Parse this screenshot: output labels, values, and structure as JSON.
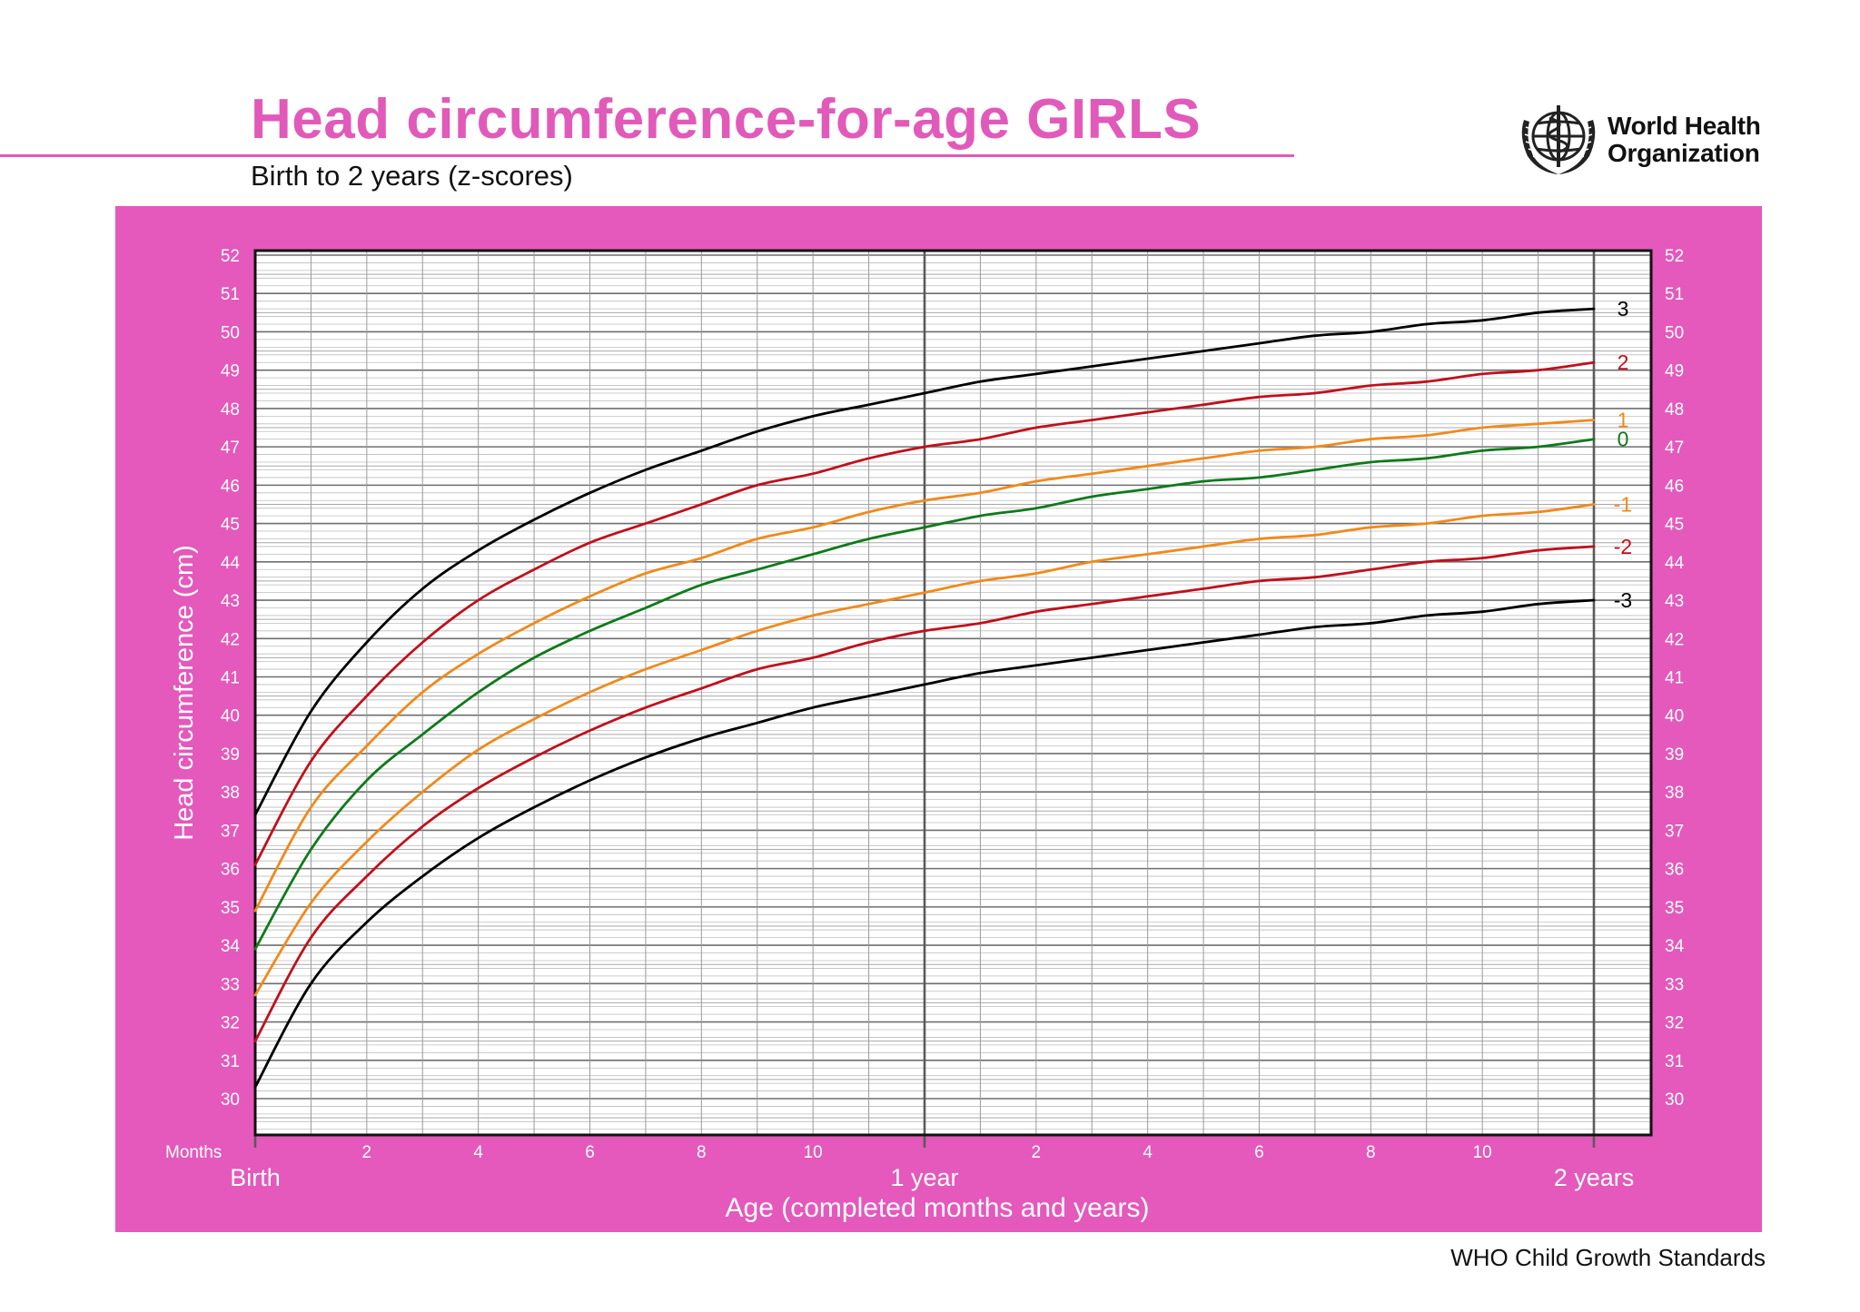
{
  "header": {
    "title": "Head circumference-for-age  GIRLS",
    "subtitle": "Birth to 2 years (z-scores)",
    "org_line1": "World Health",
    "org_line2": "Organization",
    "logo_icon": "who-emblem-icon"
  },
  "footer": {
    "text": "WHO Child Growth Standards"
  },
  "colors": {
    "brand_pink": "#e15ab9",
    "panel_pink": "#e459bb",
    "z3": "#000000",
    "z2": "#c0101c",
    "z1": "#f08a1a",
    "z0": "#0e7a1a"
  },
  "chart_data": {
    "type": "line",
    "title": "Head circumference-for-age  GIRLS",
    "subtitle": "Birth to 2 years (z-scores)",
    "xlabel": "Age (completed months and years)",
    "ylabel": "Head circumference (cm)",
    "x_unit_label": "Months",
    "xlim": [
      0,
      24
    ],
    "ylim": [
      29,
      52
    ],
    "y_ticks": [
      30,
      31,
      32,
      33,
      34,
      35,
      36,
      37,
      38,
      39,
      40,
      41,
      42,
      43,
      44,
      45,
      46,
      47,
      48,
      49,
      50,
      51,
      52
    ],
    "x_ticks": [
      {
        "month": 2,
        "label": "2"
      },
      {
        "month": 4,
        "label": "4"
      },
      {
        "month": 6,
        "label": "6"
      },
      {
        "month": 8,
        "label": "8"
      },
      {
        "month": 10,
        "label": "10"
      },
      {
        "month": 14,
        "label": "2"
      },
      {
        "month": 16,
        "label": "4"
      },
      {
        "month": 18,
        "label": "6"
      },
      {
        "month": 20,
        "label": "8"
      },
      {
        "month": 22,
        "label": "10"
      }
    ],
    "x_major_labels": [
      {
        "month": 0,
        "label": "Birth"
      },
      {
        "month": 12,
        "label": "1 year"
      },
      {
        "month": 24,
        "label": "2 years"
      }
    ],
    "grid": true,
    "x": [
      0,
      1,
      2,
      3,
      4,
      5,
      6,
      7,
      8,
      9,
      10,
      11,
      12,
      13,
      14,
      15,
      16,
      17,
      18,
      19,
      20,
      21,
      22,
      23,
      24
    ],
    "series": [
      {
        "name": "3",
        "color": "#000000",
        "values": [
          37.4,
          40.1,
          41.9,
          43.3,
          44.3,
          45.1,
          45.8,
          46.4,
          46.9,
          47.4,
          47.8,
          48.1,
          48.4,
          48.7,
          48.9,
          49.1,
          49.3,
          49.5,
          49.7,
          49.9,
          50.0,
          50.2,
          50.3,
          50.5,
          50.6
        ]
      },
      {
        "name": "2",
        "color": "#c0101c",
        "values": [
          36.1,
          38.8,
          40.5,
          41.9,
          43.0,
          43.8,
          44.5,
          45.0,
          45.5,
          46.0,
          46.3,
          46.7,
          47.0,
          47.2,
          47.5,
          47.7,
          47.9,
          48.1,
          48.3,
          48.4,
          48.6,
          48.7,
          48.9,
          49.0,
          49.2
        ]
      },
      {
        "name": "1",
        "color": "#f08a1a",
        "values": [
          34.9,
          37.6,
          39.2,
          40.6,
          41.6,
          42.4,
          43.1,
          43.7,
          44.1,
          44.6,
          44.9,
          45.3,
          45.6,
          45.8,
          46.1,
          46.3,
          46.5,
          46.7,
          46.9,
          47.0,
          47.2,
          47.3,
          47.5,
          47.6,
          47.7
        ]
      },
      {
        "name": "0",
        "color": "#0e7a1a",
        "values": [
          33.9,
          36.5,
          38.3,
          39.5,
          40.6,
          41.5,
          42.2,
          42.8,
          43.4,
          43.8,
          44.2,
          44.6,
          44.9,
          45.2,
          45.4,
          45.7,
          45.9,
          46.1,
          46.2,
          46.4,
          46.6,
          46.7,
          46.9,
          47.0,
          47.2
        ]
      },
      {
        "name": "-1",
        "color": "#f08a1a",
        "values": [
          32.7,
          35.1,
          36.7,
          38.0,
          39.1,
          39.9,
          40.6,
          41.2,
          41.7,
          42.2,
          42.6,
          42.9,
          43.2,
          43.5,
          43.7,
          44.0,
          44.2,
          44.4,
          44.6,
          44.7,
          44.9,
          45.0,
          45.2,
          45.3,
          45.5
        ]
      },
      {
        "name": "-2",
        "color": "#c0101c",
        "values": [
          31.5,
          34.2,
          35.8,
          37.1,
          38.1,
          38.9,
          39.6,
          40.2,
          40.7,
          41.2,
          41.5,
          41.9,
          42.2,
          42.4,
          42.7,
          42.9,
          43.1,
          43.3,
          43.5,
          43.6,
          43.8,
          44.0,
          44.1,
          44.3,
          44.4
        ]
      },
      {
        "name": "-3",
        "color": "#000000",
        "values": [
          30.3,
          33.0,
          34.6,
          35.8,
          36.8,
          37.6,
          38.3,
          38.9,
          39.4,
          39.8,
          40.2,
          40.5,
          40.8,
          41.1,
          41.3,
          41.5,
          41.7,
          41.9,
          42.1,
          42.3,
          42.4,
          42.6,
          42.7,
          42.9,
          43.0
        ]
      }
    ]
  }
}
